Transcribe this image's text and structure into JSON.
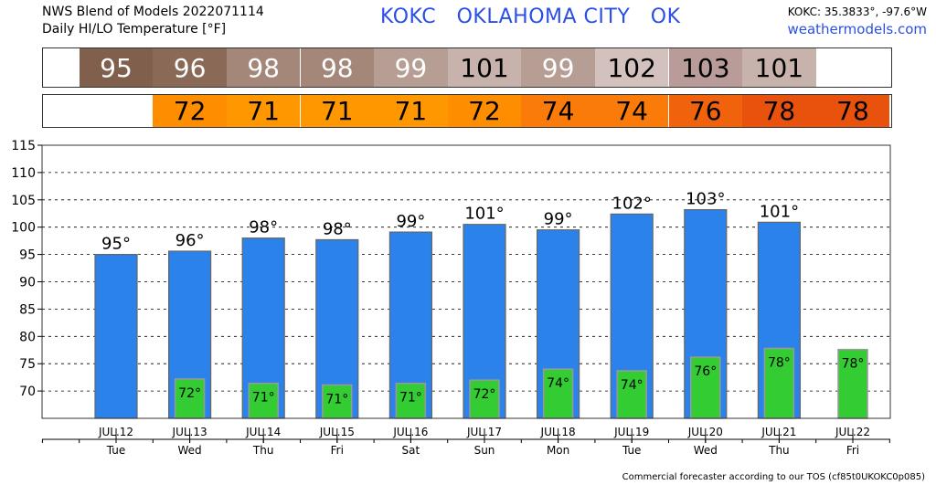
{
  "header": {
    "line1": "NWS Blend of Models 2022071114",
    "line2": "Daily HI/LO Temperature [°F]",
    "station_title": "KOKC   OKLAHOMA CITY   OK",
    "coords": "KOKC: 35.3833°, -97.6°W",
    "site": "weathermodels.com"
  },
  "hi_strip": [
    {
      "label": "95",
      "color": "#80604c",
      "text_color": "#ffffff"
    },
    {
      "label": "96",
      "color": "#8a6a56",
      "text_color": "#ffffff"
    },
    {
      "label": "98",
      "color": "#a5877a",
      "text_color": "#ffffff"
    },
    {
      "label": "98",
      "color": "#a5877a",
      "text_color": "#ffffff"
    },
    {
      "label": "99",
      "color": "#b79e94",
      "text_color": "#ffffff"
    },
    {
      "label": "101",
      "color": "#c7b2ac",
      "text_color": "#000000"
    },
    {
      "label": "99",
      "color": "#b79e94",
      "text_color": "#ffffff"
    },
    {
      "label": "102",
      "color": "#d3c1bd",
      "text_color": "#000000"
    },
    {
      "label": "103",
      "color": "#b99c9a",
      "text_color": "#000000"
    },
    {
      "label": "101",
      "color": "#c7b2ac",
      "text_color": "#000000"
    }
  ],
  "lo_strip": [
    {
      "label": "72",
      "color": "#fe8e00"
    },
    {
      "label": "71",
      "color": "#ff9800"
    },
    {
      "label": "71",
      "color": "#ff9800"
    },
    {
      "label": "71",
      "color": "#ff9800"
    },
    {
      "label": "72",
      "color": "#fe8e00"
    },
    {
      "label": "74",
      "color": "#fa7a0a"
    },
    {
      "label": "74",
      "color": "#fa7a0a"
    },
    {
      "label": "76",
      "color": "#f0620c"
    },
    {
      "label": "78",
      "color": "#e8520d"
    },
    {
      "label": "78",
      "color": "#e8520d"
    }
  ],
  "chart_data": {
    "type": "bar",
    "categories": [
      "JUL.12",
      "JUL.13",
      "JUL.14",
      "JUL.15",
      "JUL.16",
      "JUL.17",
      "JUL.18",
      "JUL.19",
      "JUL.20",
      "JUL.21",
      "JUL.22"
    ],
    "days": [
      "Tue",
      "Wed",
      "Thu",
      "Fri",
      "Sat",
      "Sun",
      "Mon",
      "Tue",
      "Wed",
      "Thu",
      "Fri"
    ],
    "series": [
      {
        "values": [
          95.0,
          95.6,
          98.0,
          97.7,
          99.1,
          100.5,
          99.5,
          102.4,
          103.2,
          100.9,
          null
        ],
        "labels": [
          "95°",
          "96°",
          "98°",
          "98°",
          "99°",
          "101°",
          "99°",
          "102°",
          "103°",
          "101°",
          ""
        ]
      },
      {
        "values": [
          null,
          72.2,
          71.4,
          71.1,
          71.4,
          72.0,
          74.0,
          73.7,
          76.2,
          77.8,
          77.6
        ],
        "labels": [
          "",
          "72°",
          "71°",
          "71°",
          "71°",
          "72°",
          "74°",
          "74°",
          "76°",
          "78°",
          "78°"
        ]
      }
    ],
    "ylim": [
      65,
      115
    ],
    "yticks": [
      70,
      75,
      80,
      85,
      90,
      95,
      100,
      105,
      110,
      115
    ],
    "grid": true,
    "colors": {
      "hi_bar": "#2a82ea",
      "lo_bar": "#33cc33",
      "lo_bar_alt": "#44dd44",
      "grid": "#000000"
    }
  },
  "footer": "Commercial forecaster according to our TOS (cf85t0UKOKC0p085)"
}
